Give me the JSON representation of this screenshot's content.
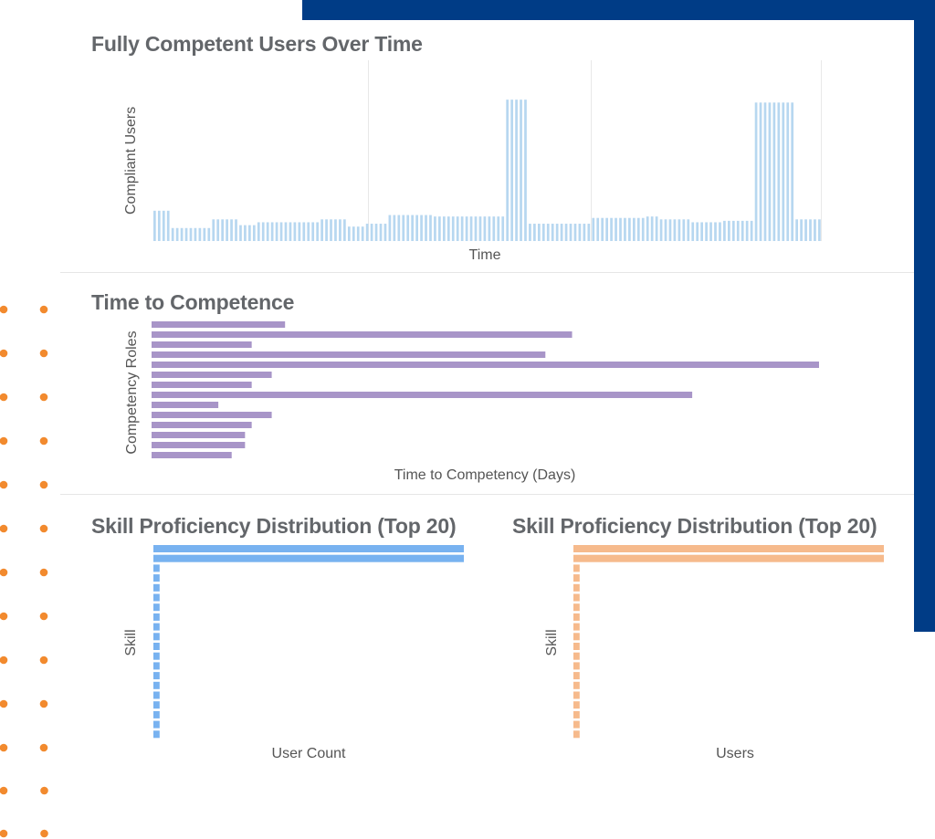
{
  "colors": {
    "navy": "#003C86",
    "dots": "#F28A2E",
    "bar_light_blue": "#B7D7F0",
    "bar_purple": "#A895C8",
    "bar_blue": "#78B2F0",
    "bar_orange": "#F6BA8C",
    "title": "#63666A",
    "grid": "#e8e8e8"
  },
  "charts": {
    "users_over_time": {
      "title": "Fully Competent Users Over Time",
      "xlabel": "Time",
      "ylabel": "Compliant Users"
    },
    "time_to_competence": {
      "title": "Time to Competence",
      "xlabel": "Time to Competency (Days)",
      "ylabel": "Competency Roles"
    },
    "skill_dist_1": {
      "title": "Skill Proficiency Distribution (Top 20)",
      "xlabel": "User Count",
      "ylabel": "Skill"
    },
    "skill_dist_2": {
      "title": "Skill Proficiency Distribution (Top 20)",
      "xlabel": "Users",
      "ylabel": "Skill"
    }
  },
  "chart_data": [
    {
      "id": "users_over_time",
      "type": "bar",
      "title": "Fully Competent Users Over Time",
      "xlabel": "Time",
      "ylabel": "Compliant Users",
      "ylim": [
        0,
        100
      ],
      "grid": true,
      "values": [
        21,
        21,
        21,
        21,
        9,
        9,
        9,
        9,
        9,
        9,
        9,
        9,
        9,
        15,
        15,
        15,
        15,
        15,
        15,
        11,
        11,
        11,
        11,
        13,
        13,
        13,
        13,
        13,
        13,
        13,
        13,
        13,
        13,
        13,
        13,
        13,
        13,
        15,
        15,
        15,
        15,
        15,
        15,
        10,
        10,
        10,
        10,
        12,
        12,
        12,
        12,
        12,
        18,
        18,
        18,
        18,
        18,
        18,
        18,
        18,
        18,
        18,
        17,
        17,
        17,
        17,
        17,
        17,
        17,
        17,
        17,
        17,
        17,
        17,
        17,
        17,
        17,
        17,
        98,
        98,
        98,
        98,
        98,
        12,
        12,
        12,
        12,
        12,
        12,
        12,
        12,
        12,
        12,
        12,
        12,
        12,
        12,
        16,
        16,
        16,
        16,
        16,
        16,
        16,
        16,
        16,
        16,
        16,
        16,
        17,
        17,
        17,
        15,
        15,
        15,
        15,
        15,
        15,
        15,
        13,
        13,
        13,
        13,
        13,
        13,
        13,
        14,
        14,
        14,
        14,
        14,
        14,
        14,
        96,
        96,
        96,
        96,
        96,
        96,
        96,
        96,
        96,
        15,
        15,
        15,
        15,
        15,
        15
      ]
    },
    {
      "id": "time_to_competence",
      "type": "bar",
      "orientation": "horizontal",
      "title": "Time to Competence",
      "xlabel": "Time to Competency (Days)",
      "ylabel": "Competency Roles",
      "xlim": [
        0,
        100
      ],
      "values": [
        20,
        63,
        15,
        59,
        100,
        18,
        15,
        81,
        10,
        18,
        15,
        14,
        14,
        12
      ]
    },
    {
      "id": "skill_dist_1",
      "type": "bar",
      "orientation": "horizontal",
      "title": "Skill Proficiency Distribution (Top 20)",
      "xlabel": "User Count",
      "ylabel": "Skill",
      "xlim": [
        0,
        100
      ],
      "values": [
        100,
        100,
        2,
        2,
        2,
        2,
        2,
        2,
        2,
        2,
        2,
        2,
        2,
        2,
        2,
        2,
        2,
        2,
        2,
        2
      ]
    },
    {
      "id": "skill_dist_2",
      "type": "bar",
      "orientation": "horizontal",
      "title": "Skill Proficiency Distribution (Top 20)",
      "xlabel": "Users",
      "ylabel": "Skill",
      "xlim": [
        0,
        100
      ],
      "values": [
        100,
        100,
        2,
        2,
        2,
        2,
        2,
        2,
        2,
        2,
        2,
        2,
        2,
        2,
        2,
        2,
        2,
        2,
        2,
        2
      ]
    }
  ]
}
